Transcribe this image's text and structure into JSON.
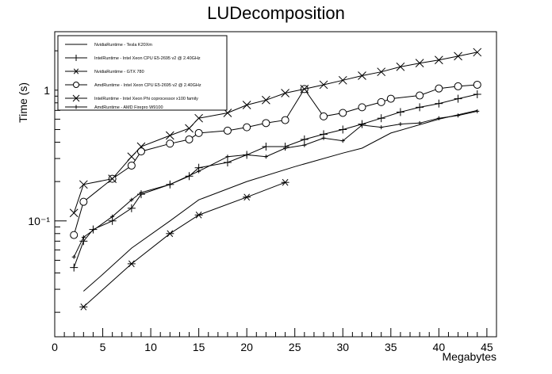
{
  "chart_data": {
    "type": "line",
    "title": "LUDecomposition",
    "xlabel": "Megabytes",
    "ylabel": "Time (s)",
    "xlim": [
      0,
      46
    ],
    "ylim": [
      0.013,
      2.8
    ],
    "yscale": "log",
    "grid": false,
    "legend_position": "top-left",
    "x_ticks": [
      0,
      5,
      10,
      15,
      20,
      25,
      30,
      35,
      40,
      45
    ],
    "x_tick_labels": [
      "0",
      "5",
      "10",
      "15",
      "20",
      "25",
      "30",
      "35",
      "40",
      "45"
    ],
    "y_ticks": [
      0.1,
      1
    ],
    "y_tick_labels": [
      "10⁻¹",
      "1"
    ],
    "series": [
      {
        "name": "NvidiaRuntime - Tesla K20Xm",
        "marker": "none",
        "x": [
          3,
          5,
          8,
          12,
          15,
          20,
          25,
          30,
          32,
          35,
          40,
          44
        ],
        "y": [
          0.029,
          0.039,
          0.062,
          0.1,
          0.145,
          0.2,
          0.26,
          0.33,
          0.36,
          0.47,
          0.6,
          0.7
        ]
      },
      {
        "name": "IntelRuntime - Intel Xeon CPU E5-2695 v2 @ 2.40GHz",
        "marker": "plus",
        "x": [
          2,
          3,
          4,
          6,
          8,
          9,
          12,
          14,
          15,
          18,
          20,
          22,
          24,
          26,
          28,
          30,
          32,
          34,
          36,
          38,
          40,
          42,
          44
        ],
        "y": [
          0.044,
          0.07,
          0.086,
          0.1,
          0.125,
          0.16,
          0.19,
          0.22,
          0.255,
          0.28,
          0.32,
          0.37,
          0.37,
          0.42,
          0.46,
          0.5,
          0.55,
          0.61,
          0.68,
          0.74,
          0.79,
          0.86,
          0.93
        ]
      },
      {
        "name": "NvidiaRuntime - GTX 780",
        "marker": "asterisk",
        "x": [
          3,
          8,
          12,
          15,
          20,
          24
        ],
        "y": [
          0.022,
          0.047,
          0.08,
          0.111,
          0.152,
          0.197
        ]
      },
      {
        "name": "AmdRuntime - Intel Xeon CPU E5-2695 v2 @ 2.40GHz",
        "marker": "circle",
        "x": [
          2,
          3,
          6,
          8,
          9,
          12,
          14,
          15,
          18,
          20,
          22,
          24,
          26,
          28,
          30,
          32,
          34,
          35,
          38,
          40,
          42,
          44
        ],
        "y": [
          0.078,
          0.14,
          0.21,
          0.265,
          0.34,
          0.39,
          0.42,
          0.47,
          0.49,
          0.52,
          0.56,
          0.59,
          1.02,
          0.63,
          0.67,
          0.74,
          0.81,
          0.86,
          0.91,
          1.03,
          1.07,
          1.1
        ]
      },
      {
        "name": "IntelRuntime - Intel Xeon Phi coprocessor x100 family",
        "marker": "cross",
        "x": [
          2,
          3,
          6,
          8,
          9,
          12,
          14,
          15,
          18,
          20,
          22,
          24,
          26,
          28,
          30,
          32,
          34,
          36,
          38,
          40,
          42,
          44
        ],
        "y": [
          0.115,
          0.19,
          0.21,
          0.31,
          0.37,
          0.45,
          0.51,
          0.61,
          0.67,
          0.77,
          0.84,
          0.95,
          1.02,
          1.1,
          1.19,
          1.29,
          1.38,
          1.51,
          1.61,
          1.7,
          1.82,
          1.95
        ]
      },
      {
        "name": "AmdRuntime - AMD Firepro W9100",
        "marker": "smallplus",
        "x": [
          2,
          3,
          6,
          8,
          9,
          12,
          15,
          18,
          20,
          22,
          24,
          26,
          28,
          30,
          32,
          34,
          36,
          38,
          40,
          42,
          44
        ],
        "y": [
          0.053,
          0.075,
          0.108,
          0.145,
          0.165,
          0.19,
          0.24,
          0.31,
          0.32,
          0.31,
          0.36,
          0.38,
          0.43,
          0.41,
          0.54,
          0.52,
          0.55,
          0.56,
          0.61,
          0.64,
          0.69
        ]
      }
    ]
  }
}
